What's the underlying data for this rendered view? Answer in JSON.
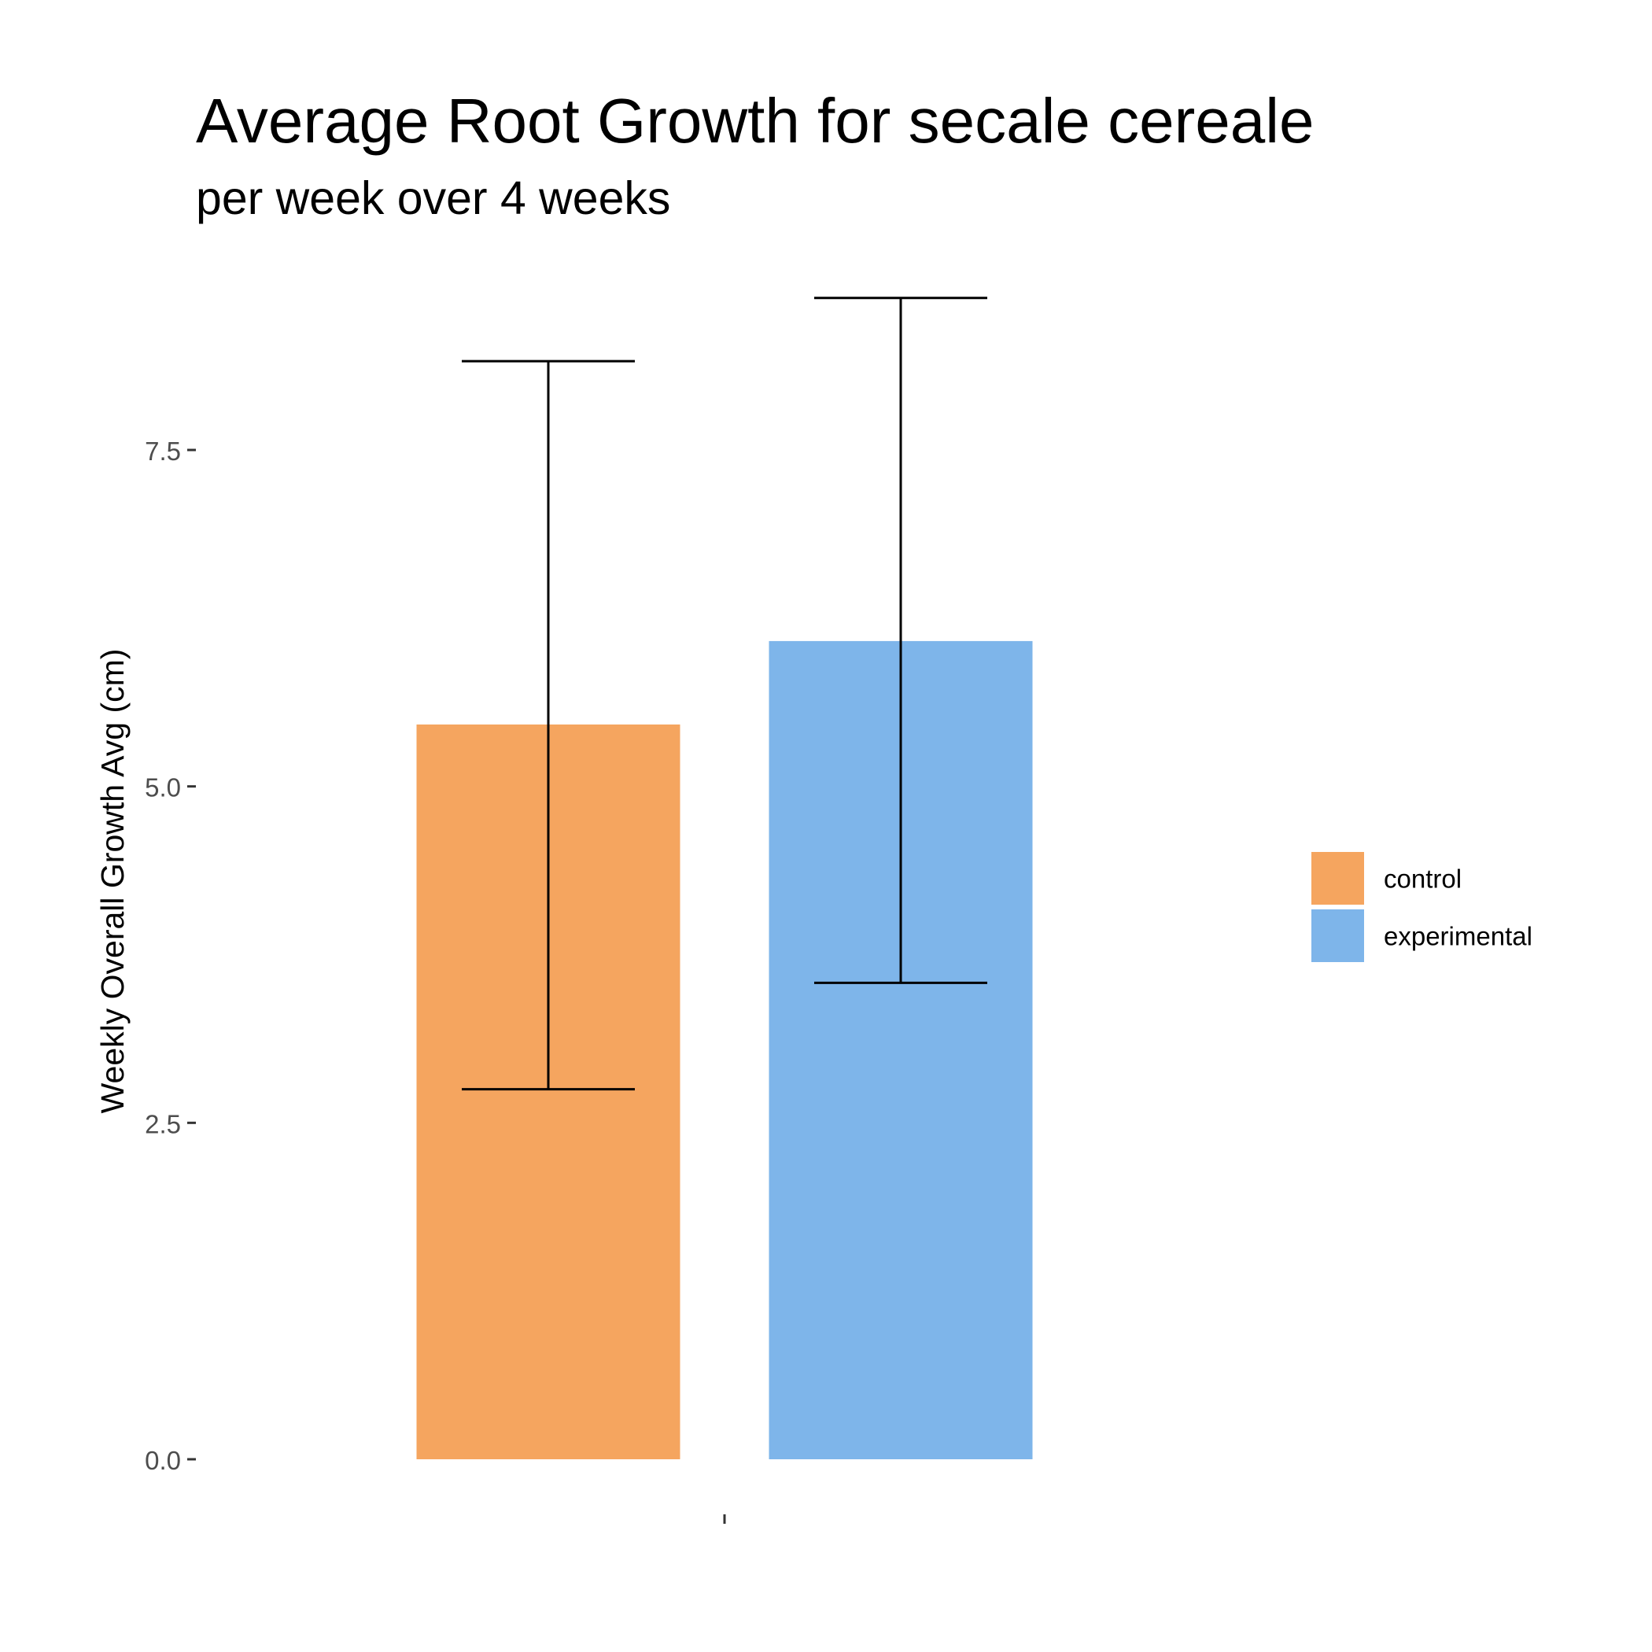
{
  "chart_data": {
    "type": "bar",
    "title": "Average Root Growth for secale cereale",
    "subtitle": "per week over 4 weeks",
    "xlabel": "",
    "ylabel": "Weekly Overall Growth Avg (cm)",
    "ylim": [
      0,
      8.7
    ],
    "yticks": [
      0.0,
      2.5,
      5.0,
      7.5
    ],
    "ytick_labels": [
      "0.0",
      "2.5",
      "5.0",
      "7.5"
    ],
    "categories": [
      ""
    ],
    "grid": false,
    "legend_position": "right",
    "series": [
      {
        "name": "control",
        "values": [
          5.46
        ],
        "error_low": [
          2.75
        ],
        "error_high": [
          8.16
        ],
        "color": "#F5A55F"
      },
      {
        "name": "experimental",
        "values": [
          6.08
        ],
        "error_low": [
          3.54
        ],
        "error_high": [
          8.63
        ],
        "color": "#7EB5EA"
      }
    ],
    "tick_color": "#333333",
    "errorbar_color": "#000000"
  }
}
